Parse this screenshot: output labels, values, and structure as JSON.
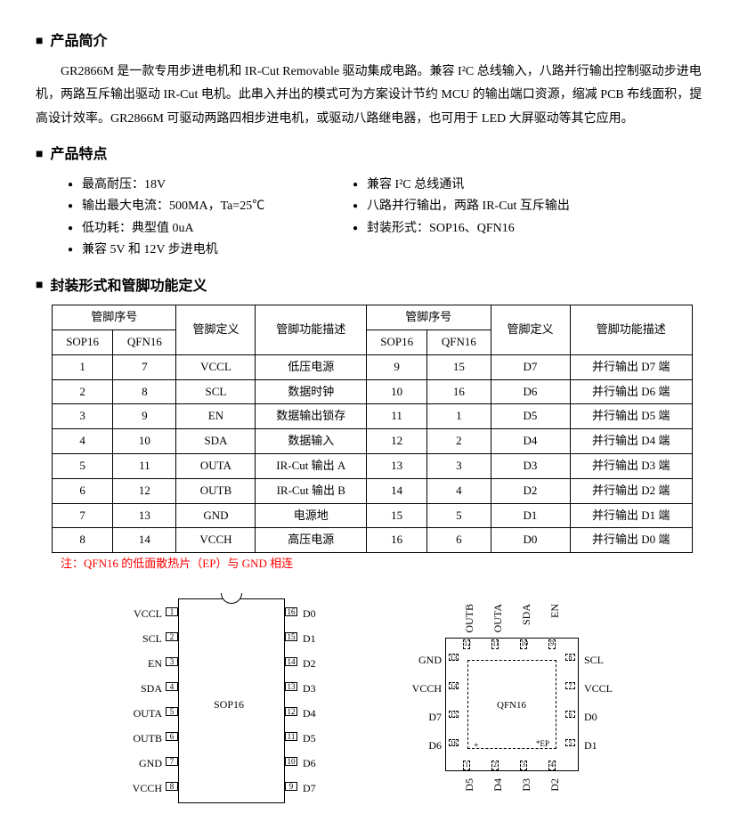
{
  "sections": {
    "intro_title": "产品简介",
    "features_title": "产品特点",
    "package_title": "封装形式和管脚功能定义"
  },
  "intro": "GR2866M 是一款专用步进电机和 IR-Cut Removable 驱动集成电路。兼容 I²C 总线输入，八路并行输出控制驱动步进电机，两路互斥输出驱动 IR-Cut 电机。此串入并出的模式可为方案设计节约 MCU 的输出端口资源，缩减 PCB 布线面积，提高设计效率。GR2866M 可驱动两路四相步进电机，或驱动八路继电器，也可用于 LED 大屏驱动等其它应用。",
  "features_left": [
    "最高耐压：18V",
    "输出最大电流：500MA，Ta=25℃",
    "低功耗：典型值 0uA",
    "兼容 5V 和 12V 步进电机"
  ],
  "features_right": [
    "兼容 I²C 总线通讯",
    "八路并行输出，两路 IR-Cut 互斥输出",
    "封装形式：SOP16、QFN16"
  ],
  "table": {
    "header_pinno": "管脚序号",
    "header_sop": "SOP16",
    "header_qfn": "QFN16",
    "header_def": "管脚定义",
    "header_desc": "管脚功能描述",
    "rows": [
      {
        "s1": "1",
        "q1": "7",
        "d1": "VCCL",
        "f1": "低压电源",
        "s2": "9",
        "q2": "15",
        "d2": "D7",
        "f2": "并行输出 D7 端"
      },
      {
        "s1": "2",
        "q1": "8",
        "d1": "SCL",
        "f1": "数据时钟",
        "s2": "10",
        "q2": "16",
        "d2": "D6",
        "f2": "并行输出 D6 端"
      },
      {
        "s1": "3",
        "q1": "9",
        "d1": "EN",
        "f1": "数据输出锁存",
        "s2": "11",
        "q2": "1",
        "d2": "D5",
        "f2": "并行输出 D5 端"
      },
      {
        "s1": "4",
        "q1": "10",
        "d1": "SDA",
        "f1": "数据输入",
        "s2": "12",
        "q2": "2",
        "d2": "D4",
        "f2": "并行输出 D4 端"
      },
      {
        "s1": "5",
        "q1": "11",
        "d1": "OUTA",
        "f1": "IR-Cut 输出 A",
        "s2": "13",
        "q2": "3",
        "d2": "D3",
        "f2": "并行输出 D3 端"
      },
      {
        "s1": "6",
        "q1": "12",
        "d1": "OUTB",
        "f1": "IR-Cut 输出 B",
        "s2": "14",
        "q2": "4",
        "d2": "D2",
        "f2": "并行输出 D2 端"
      },
      {
        "s1": "7",
        "q1": "13",
        "d1": "GND",
        "f1": "电源地",
        "s2": "15",
        "q2": "5",
        "d2": "D1",
        "f2": "并行输出 D1 端"
      },
      {
        "s1": "8",
        "q1": "14",
        "d1": "VCCH",
        "f1": "高压电源",
        "s2": "16",
        "q2": "6",
        "d2": "D0",
        "f2": "并行输出 D0 端"
      }
    ]
  },
  "note": "注：QFN16 的低面散热片（EP）与 GND 相连",
  "sop": {
    "label": "SOP16",
    "left": [
      "VCCL",
      "SCL",
      "EN",
      "SDA",
      "OUTA",
      "OUTB",
      "GND",
      "VCCH"
    ],
    "left_nums": [
      "1",
      "2",
      "3",
      "4",
      "5",
      "6",
      "7",
      "8"
    ],
    "right": [
      "D0",
      "D1",
      "D2",
      "D3",
      "D4",
      "D5",
      "D6",
      "D7"
    ],
    "right_nums": [
      "16",
      "15",
      "14",
      "13",
      "12",
      "11",
      "10",
      "9"
    ]
  },
  "qfn": {
    "label": "QFN16",
    "ep": "*EP",
    "top": [
      "OUTB",
      "OUTA",
      "SDA",
      "EN"
    ],
    "top_nums": [
      "12",
      "11",
      "10",
      "9"
    ],
    "right": [
      "SCL",
      "VCCL",
      "D0",
      "D1"
    ],
    "right_nums": [
      "8",
      "7",
      "6",
      "5"
    ],
    "bottom": [
      "D5",
      "D4",
      "D3",
      "D2"
    ],
    "bottom_nums": [
      "1",
      "2",
      "3",
      "4"
    ],
    "left": [
      "GND",
      "VCCH",
      "D7",
      "D6"
    ],
    "left_nums": [
      "13",
      "14",
      "15",
      "16"
    ]
  },
  "colors": {
    "note": "#ff0000",
    "border": "#000000",
    "text": "#000000"
  }
}
